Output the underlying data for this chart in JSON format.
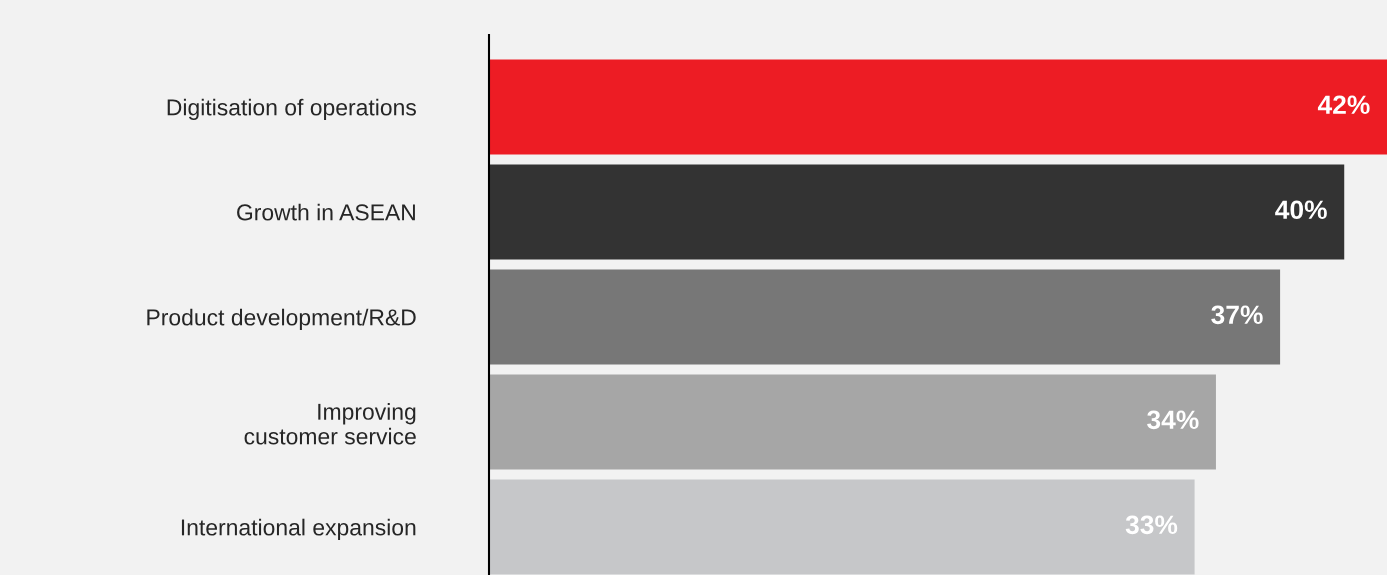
{
  "chart_data": {
    "type": "bar",
    "orientation": "horizontal",
    "categories": [
      "Digitisation of operations",
      "Growth in ASEAN",
      "Product development/R&D",
      "Improving\ncustomer service",
      "International expansion"
    ],
    "values": [
      42,
      40,
      37,
      34,
      33
    ],
    "colors": [
      "#ed1c24",
      "#333333",
      "#777777",
      "#a6a6a6",
      "#c6c7c9"
    ],
    "value_labels": [
      "42%",
      "40%",
      "37%",
      "34%",
      "33%"
    ],
    "grid": false,
    "legend": false
  }
}
